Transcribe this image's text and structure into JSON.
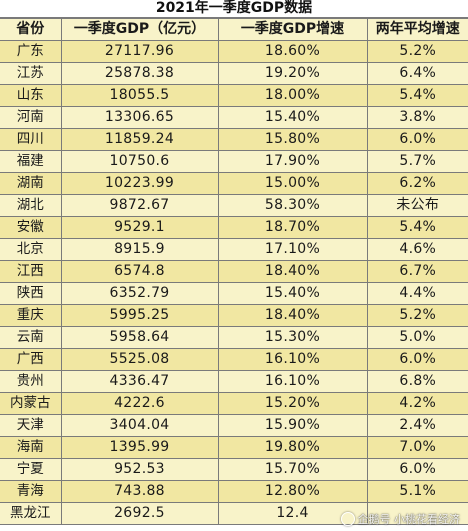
{
  "title": "2021年一季度GDP数据",
  "columns": [
    "省份",
    "一季度GDP（亿元）",
    "一季度GDP增速",
    "两年平均增速"
  ],
  "rows": [
    {
      "province": "广东",
      "gdp": "27117.96",
      "growth": "18.60%",
      "avg": "5.2%"
    },
    {
      "province": "江苏",
      "gdp": "25878.38",
      "growth": "19.20%",
      "avg": "6.4%"
    },
    {
      "province": "山东",
      "gdp": "18055.5",
      "growth": "18.00%",
      "avg": "5.4%"
    },
    {
      "province": "河南",
      "gdp": "13306.65",
      "growth": "15.40%",
      "avg": "3.8%"
    },
    {
      "province": "四川",
      "gdp": "11859.24",
      "growth": "15.80%",
      "avg": "6.0%"
    },
    {
      "province": "福建",
      "gdp": "10750.6",
      "growth": "17.90%",
      "avg": "5.7%"
    },
    {
      "province": "湖南",
      "gdp": "10223.99",
      "growth": "15.00%",
      "avg": "6.2%"
    },
    {
      "province": "湖北",
      "gdp": "9872.67",
      "growth": "58.30%",
      "avg": "未公布"
    },
    {
      "province": "安徽",
      "gdp": "9529.1",
      "growth": "18.70%",
      "avg": "5.4%"
    },
    {
      "province": "北京",
      "gdp": "8915.9",
      "growth": "17.10%",
      "avg": "4.6%"
    },
    {
      "province": "江西",
      "gdp": "6574.8",
      "growth": "18.40%",
      "avg": "6.7%"
    },
    {
      "province": "陕西",
      "gdp": "6352.79",
      "growth": "15.40%",
      "avg": "4.4%"
    },
    {
      "province": "重庆",
      "gdp": "5995.25",
      "growth": "18.40%",
      "avg": "5.2%"
    },
    {
      "province": "云南",
      "gdp": "5958.64",
      "growth": "15.30%",
      "avg": "5.0%"
    },
    {
      "province": "广西",
      "gdp": "5525.08",
      "growth": "16.10%",
      "avg": "6.0%"
    },
    {
      "province": "贵州",
      "gdp": "4336.47",
      "growth": "16.10%",
      "avg": "6.8%"
    },
    {
      "province": "内蒙古",
      "gdp": "4222.6",
      "growth": "15.20%",
      "avg": "4.2%"
    },
    {
      "province": "天津",
      "gdp": "3404.04",
      "growth": "15.90%",
      "avg": "2.4%"
    },
    {
      "province": "海南",
      "gdp": "1395.99",
      "growth": "19.80%",
      "avg": "7.0%"
    },
    {
      "province": "宁夏",
      "gdp": "952.53",
      "growth": "15.70%",
      "avg": "6.0%"
    },
    {
      "province": "青海",
      "gdp": "743.88",
      "growth": "12.80%",
      "avg": "5.1%"
    },
    {
      "province": "黑龙江",
      "gdp": "2692.5",
      "growth": "12.4",
      "avg": ""
    }
  ],
  "watermark": "企鹅号 小桃花看经济",
  "colors": {
    "band_light": "#f8f3c9",
    "band_dark": "#f1e7a2",
    "grid": "#7a7a7a"
  }
}
